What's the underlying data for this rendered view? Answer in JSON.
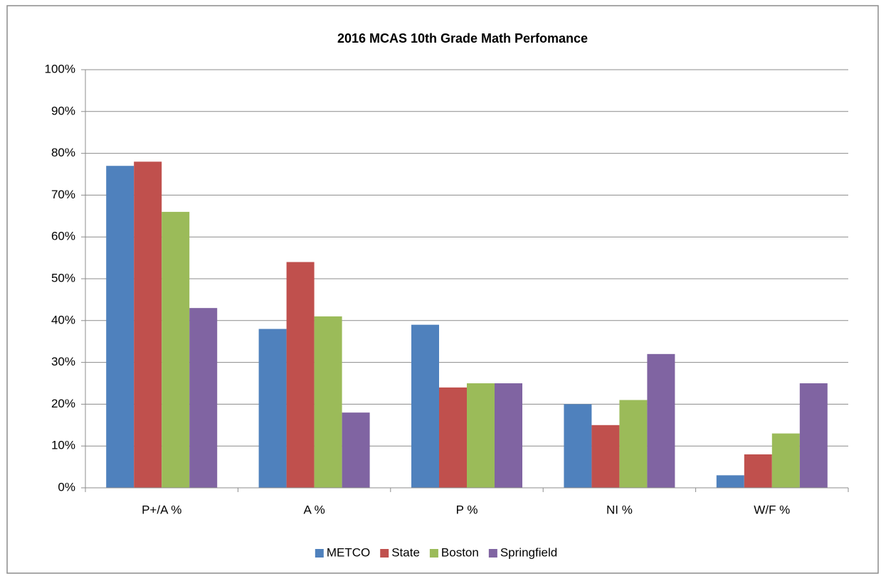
{
  "chart_data": {
    "type": "bar",
    "title": "2016 MCAS 10th Grade Math Perfomance",
    "categories": [
      "P+/A %",
      "A %",
      "P %",
      "NI %",
      "W/F %"
    ],
    "series": [
      {
        "name": "METCO",
        "color": "#4f81bd",
        "values": [
          77,
          38,
          39,
          20,
          3
        ]
      },
      {
        "name": "State",
        "color": "#c0504d",
        "values": [
          78,
          54,
          24,
          15,
          8
        ]
      },
      {
        "name": "Boston",
        "color": "#9bbb59",
        "values": [
          66,
          41,
          25,
          21,
          13
        ]
      },
      {
        "name": "Springfield",
        "color": "#8064a2",
        "values": [
          43,
          18,
          25,
          32,
          25
        ]
      }
    ],
    "ylim": [
      0,
      100
    ],
    "yticks": [
      {
        "value": 0,
        "label": "0%"
      },
      {
        "value": 10,
        "label": "10%"
      },
      {
        "value": 20,
        "label": "20%"
      },
      {
        "value": 30,
        "label": "30%"
      },
      {
        "value": 40,
        "label": "40%"
      },
      {
        "value": 50,
        "label": "50%"
      },
      {
        "value": 60,
        "label": "60%"
      },
      {
        "value": 70,
        "label": "70%"
      },
      {
        "value": 80,
        "label": "80%"
      },
      {
        "value": 90,
        "label": "90%"
      },
      {
        "value": 100,
        "label": "100%"
      }
    ],
    "grid": true,
    "legend": "bottom"
  }
}
